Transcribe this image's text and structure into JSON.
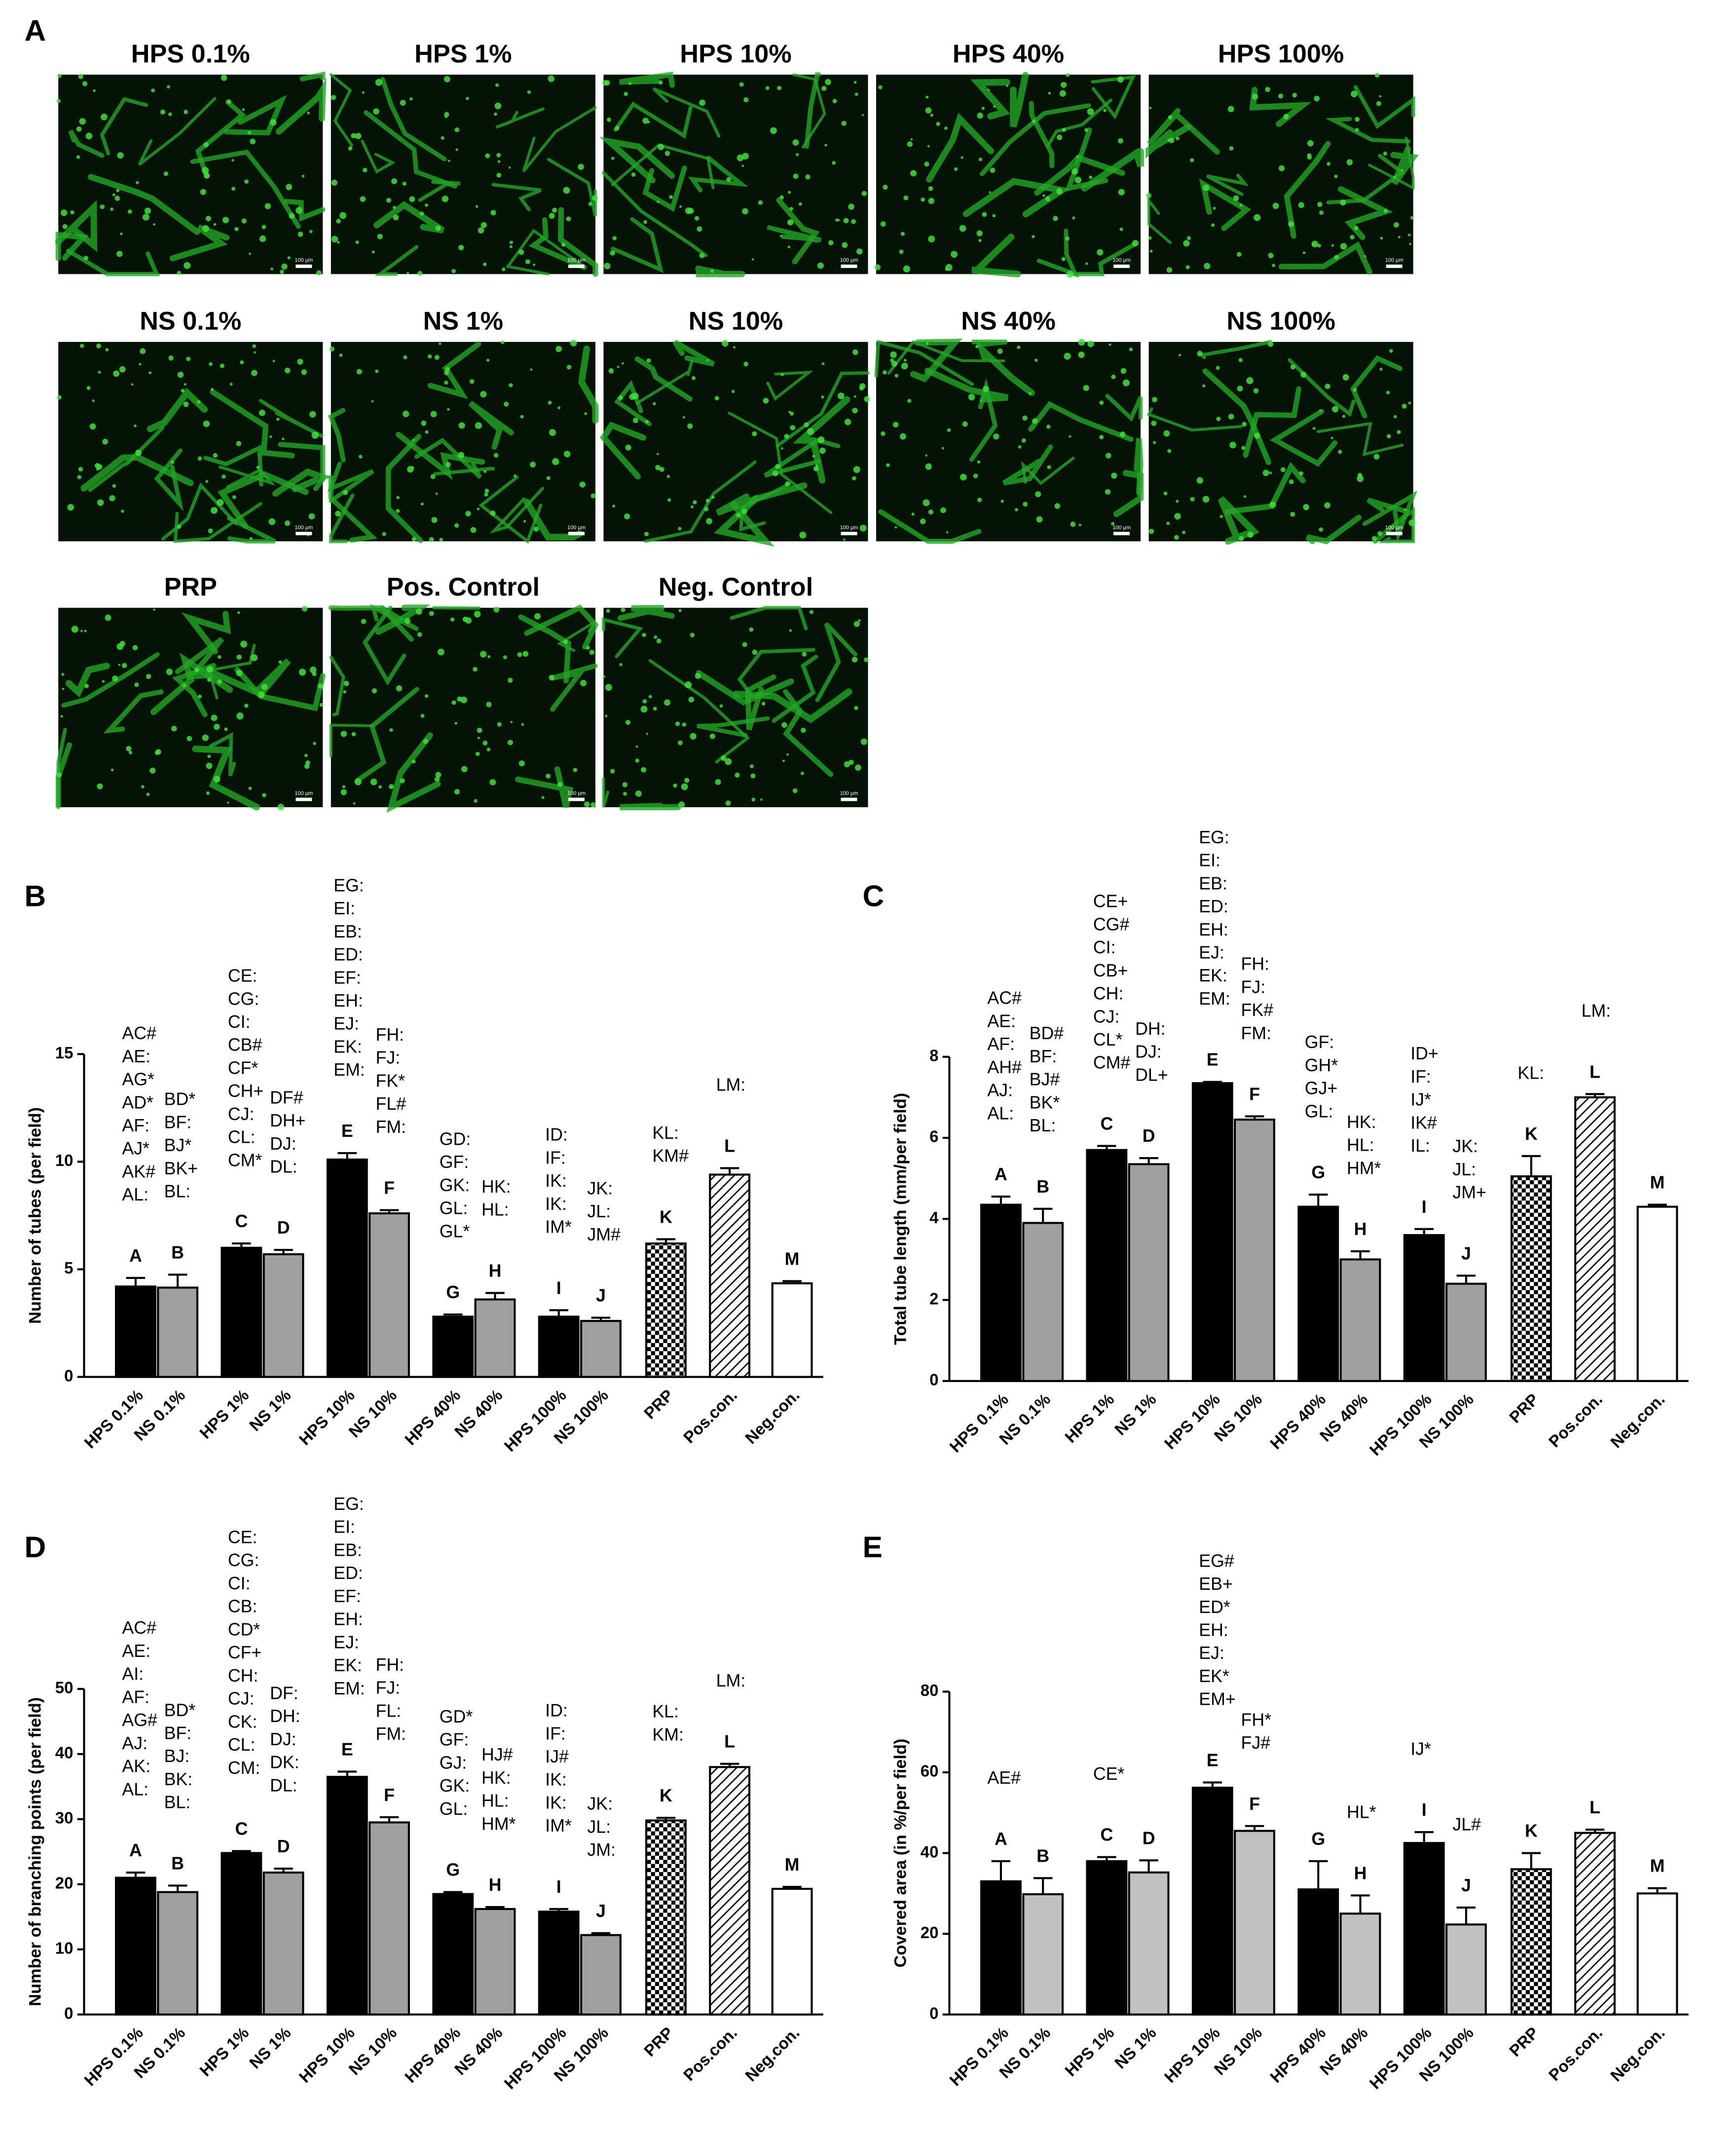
{
  "panel_a": {
    "label": "A",
    "rows": [
      [
        "HPS 0.1%",
        "HPS 1%",
        "HPS 10%",
        "HPS 40%",
        "HPS 100%"
      ],
      [
        "NS 0.1%",
        "NS 1%",
        "NS 10%",
        "NS 40%",
        "NS 100%"
      ],
      [
        "PRP",
        "Pos. Control",
        "Neg. Control"
      ]
    ],
    "scale_bar": "100 µm"
  },
  "chart_data": [
    {
      "type": "bar",
      "panel_label": "B",
      "ylabel": "Number of tubes (per field)",
      "categories": [
        "HPS 0.1%",
        "NS 0.1%",
        "HPS 1%",
        "NS 1%",
        "HPS 10%",
        "NS 10%",
        "HPS 40%",
        "NS 40%",
        "HPS 100%",
        "NS 100%",
        "PRP",
        "Pos.con.",
        "Neg.con."
      ],
      "values": [
        4.2,
        4.15,
        6.0,
        5.7,
        10.1,
        7.6,
        2.8,
        3.6,
        2.8,
        2.6,
        6.2,
        9.4,
        4.35
      ],
      "errors": [
        0.4,
        0.6,
        0.2,
        0.2,
        0.3,
        0.15,
        0.1,
        0.3,
        0.3,
        0.15,
        0.2,
        0.3,
        0.1
      ],
      "letters": [
        "A",
        "B",
        "C",
        "D",
        "E",
        "F",
        "G",
        "H",
        "I",
        "J",
        "K",
        "L",
        "M"
      ],
      "notes": [
        [
          "AC#",
          "AE:",
          "AG*",
          "AD*",
          "AF:",
          "AJ*",
          "AK#",
          "AL:"
        ],
        [
          "BD*",
          "BF:",
          "BJ*",
          "BK+",
          "BL:"
        ],
        [
          "CE:",
          "CG:",
          "CI:",
          "CB#",
          "CF*",
          "CH+",
          "CJ:",
          "CL:",
          "CM*"
        ],
        [
          "DF#",
          "DH+",
          "DJ:",
          "DL:"
        ],
        [
          "EG:",
          "EI:",
          "EB:",
          "ED:",
          "EF:",
          "EH:",
          "EJ:",
          "EK:",
          "EM:"
        ],
        [
          "FH:",
          "FJ:",
          "FK*",
          "FL#",
          "FM:"
        ],
        [
          "GD:",
          "GF:",
          "GK:",
          "GL:",
          "GL*"
        ],
        [
          "HK:",
          "HL:"
        ],
        [
          "ID:",
          "IF:",
          "IK:",
          "IK:",
          "IM*"
        ],
        [
          "JK:",
          "JL:",
          "JM#"
        ],
        [
          "KL:",
          "KM#"
        ],
        [
          "LM:"
        ],
        []
      ],
      "fills": [
        "#000000",
        "#a0a0a0",
        "#000000",
        "#a0a0a0",
        "#000000",
        "#a0a0a0",
        "#000000",
        "#a0a0a0",
        "#000000",
        "#a0a0a0",
        "checker",
        "hatch",
        "#ffffff"
      ],
      "ylim": [
        0,
        15
      ],
      "yticks": [
        0,
        5,
        10,
        15
      ]
    },
    {
      "type": "bar",
      "panel_label": "C",
      "ylabel": "Total tube length (mm/per field)",
      "categories": [
        "HPS 0.1%",
        "NS 0.1%",
        "HPS 1%",
        "NS 1%",
        "HPS 10%",
        "NS 10%",
        "HPS 40%",
        "NS 40%",
        "HPS 100%",
        "NS 100%",
        "PRP",
        "Pos.con.",
        "Neg.con."
      ],
      "values": [
        4.35,
        3.9,
        5.7,
        5.35,
        7.35,
        6.45,
        4.3,
        3.0,
        3.6,
        2.4,
        5.05,
        7.0,
        4.3
      ],
      "errors": [
        0.2,
        0.35,
        0.1,
        0.15,
        0.03,
        0.08,
        0.3,
        0.2,
        0.15,
        0.2,
        0.5,
        0.08,
        0.05
      ],
      "letters": [
        "A",
        "B",
        "C",
        "D",
        "E",
        "F",
        "G",
        "H",
        "I",
        "J",
        "K",
        "L",
        "M"
      ],
      "notes": [
        [
          "AC#",
          "AE:",
          "AF:",
          "AH#",
          "AJ:",
          "AL:"
        ],
        [
          "BD#",
          "BF:",
          "BJ#",
          "BK*",
          "BL:"
        ],
        [
          "CE+",
          "CG#",
          "CI:",
          "CB+",
          "CH:",
          "CJ:",
          "CL*",
          "CM#"
        ],
        [
          "DH:",
          "DJ:",
          "DL+"
        ],
        [
          "EG:",
          "EI:",
          "EB:",
          "ED:",
          "EH:",
          "EJ:",
          "EK:",
          "EM:"
        ],
        [
          "FH:",
          "FJ:",
          "FK#",
          "FM:"
        ],
        [
          "GF:",
          "GH*",
          "GJ+",
          "GL:"
        ],
        [
          "HK:",
          "HL:",
          "HM*"
        ],
        [
          "ID+",
          "IF:",
          "IJ*",
          "IK#",
          "IL:"
        ],
        [
          "JK:",
          "JL:",
          "JM+"
        ],
        [
          "KL:"
        ],
        [
          "LM:"
        ],
        []
      ],
      "fills": [
        "#000000",
        "#a0a0a0",
        "#000000",
        "#a0a0a0",
        "#000000",
        "#a0a0a0",
        "#000000",
        "#a0a0a0",
        "#000000",
        "#a0a0a0",
        "checker",
        "hatch",
        "#ffffff"
      ],
      "ylim": [
        0,
        8
      ],
      "yticks": [
        0,
        2,
        4,
        6,
        8
      ]
    },
    {
      "type": "bar",
      "panel_label": "D",
      "ylabel": "Number of branching points (per field)",
      "categories": [
        "HPS 0.1%",
        "NS 0.1%",
        "HPS 1%",
        "NS 1%",
        "HPS 10%",
        "NS 10%",
        "HPS 40%",
        "NS 40%",
        "HPS 100%",
        "NS 100%",
        "PRP",
        "Pos.con.",
        "Neg.con."
      ],
      "values": [
        21.0,
        18.8,
        24.8,
        21.8,
        36.5,
        29.5,
        18.5,
        16.2,
        15.8,
        12.2,
        29.8,
        38.0,
        19.3
      ],
      "errors": [
        0.8,
        1.0,
        0.3,
        0.6,
        0.8,
        0.8,
        0.3,
        0.3,
        0.4,
        0.3,
        0.4,
        0.5,
        0.3
      ],
      "letters": [
        "A",
        "B",
        "C",
        "D",
        "E",
        "F",
        "G",
        "H",
        "I",
        "J",
        "K",
        "L",
        "M"
      ],
      "notes": [
        [
          "AC#",
          "AE:",
          "AI:",
          "AF:",
          "AG#",
          "AJ:",
          "AK:",
          "AL:"
        ],
        [
          "BD*",
          "BF:",
          "BJ:",
          "BK:",
          "BL:"
        ],
        [
          "CE:",
          "CG:",
          "CI:",
          "CB:",
          "CD*",
          "CF+",
          "CH:",
          "CJ:",
          "CK:",
          "CL:",
          "CM:"
        ],
        [
          "DF:",
          "DH:",
          "DJ:",
          "DK:",
          "DL:"
        ],
        [
          "EG:",
          "EI:",
          "EB:",
          "ED:",
          "EF:",
          "EH:",
          "EJ:",
          "EK:",
          "EM:"
        ],
        [
          "FH:",
          "FJ:",
          "FL:",
          "FM:"
        ],
        [
          "GD*",
          "GF:",
          "GJ:",
          "GK:",
          "GL:"
        ],
        [
          "HJ#",
          "HK:",
          "HL:",
          "HM*"
        ],
        [
          "ID:",
          "IF:",
          "IJ#",
          "IK:",
          "IK:",
          "IM*"
        ],
        [
          "JK:",
          "JL:",
          "JM:"
        ],
        [
          "KL:",
          "KM:"
        ],
        [
          "LM:"
        ],
        []
      ],
      "fills": [
        "#000000",
        "#a0a0a0",
        "#000000",
        "#a0a0a0",
        "#000000",
        "#a0a0a0",
        "#000000",
        "#a0a0a0",
        "#000000",
        "#a0a0a0",
        "checker",
        "hatch",
        "#ffffff"
      ],
      "ylim": [
        0,
        50
      ],
      "yticks": [
        0,
        10,
        20,
        30,
        40,
        50
      ]
    },
    {
      "type": "bar",
      "panel_label": "E",
      "ylabel": "Covered area (in %/per field)",
      "categories": [
        "HPS 0.1%",
        "NS 0.1%",
        "HPS 1%",
        "NS 1%",
        "HPS 10%",
        "NS 10%",
        "HPS 40%",
        "NS 40%",
        "HPS 100%",
        "NS 100%",
        "PRP",
        "Pos.con.",
        "Neg.con."
      ],
      "values": [
        33.0,
        29.8,
        38.0,
        35.2,
        56.2,
        45.5,
        31.0,
        25.0,
        42.5,
        22.3,
        36.0,
        45.0,
        30.0
      ],
      "errors": [
        5.0,
        4.0,
        1.0,
        3.0,
        1.3,
        1.2,
        7.0,
        4.5,
        2.7,
        4.2,
        4.0,
        0.8,
        1.3
      ],
      "letters": [
        "A",
        "B",
        "C",
        "D",
        "E",
        "F",
        "G",
        "H",
        "I",
        "J",
        "K",
        "L",
        "M"
      ],
      "notes": [
        [
          "AE#"
        ],
        [],
        [
          "CE*"
        ],
        [],
        [
          "EG#",
          "EB+",
          "ED*",
          "EH:",
          "EJ:",
          "EK*",
          "EM+"
        ],
        [
          "FH*",
          "FJ#"
        ],
        [],
        [
          "HL*"
        ],
        [
          "IJ*"
        ],
        [
          "JL#"
        ],
        [],
        [],
        []
      ],
      "fills": [
        "#000000",
        "#c0c0c0",
        "#000000",
        "#c0c0c0",
        "#000000",
        "#c0c0c0",
        "#000000",
        "#c0c0c0",
        "#000000",
        "#c0c0c0",
        "checker",
        "hatch",
        "#ffffff"
      ],
      "ylim": [
        0,
        80
      ],
      "yticks": [
        0,
        20,
        40,
        60,
        80
      ]
    }
  ]
}
